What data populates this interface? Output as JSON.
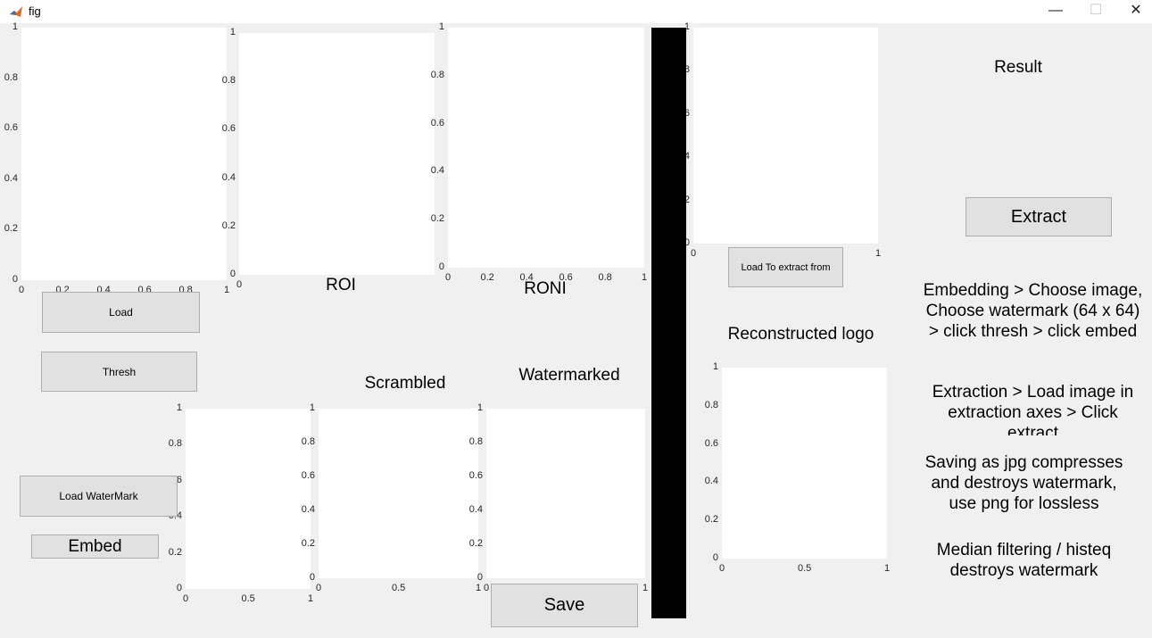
{
  "window": {
    "title": "fig",
    "controls": [
      "—",
      "☐",
      "✕"
    ]
  },
  "axes": {
    "input": {
      "x_ticks": [
        "0",
        "0.2",
        "0.4",
        "0.6",
        "0.8",
        "1"
      ],
      "y_ticks": [
        "0",
        "0.2",
        "0.4",
        "0.6",
        "0.8",
        "1"
      ]
    },
    "roi": {
      "title": "ROI",
      "x_ticks": [
        "0"
      ],
      "y_ticks": [
        "0",
        "0.2",
        "0.4",
        "0.6",
        "0.8",
        "1"
      ]
    },
    "roni": {
      "title": "RONI",
      "x_ticks": [
        "0",
        "0.2",
        "0.4",
        "0.6",
        "0.8",
        "1"
      ],
      "y_ticks": [
        "0",
        "0.2",
        "0.4",
        "0.6",
        "0.8",
        "1"
      ]
    },
    "extract": {
      "x_ticks": [
        "0",
        "1"
      ],
      "y_ticks": [
        "0",
        "0.2",
        "0.4",
        "0.6",
        "0.8",
        "1"
      ]
    },
    "watermark": {
      "x_ticks": [
        "0",
        "0.5",
        "1"
      ],
      "y_ticks": [
        "0",
        "0.2",
        "0.4",
        "0.6",
        "0.8",
        "1"
      ]
    },
    "scrambled": {
      "title": "Scrambled",
      "x_ticks": [
        "0",
        "0.5",
        "1"
      ],
      "y_ticks": [
        "0",
        "0.2",
        "0.4",
        "0.6",
        "0.8",
        "1"
      ]
    },
    "watermarked": {
      "title": "Watermarked",
      "x_ticks": [
        "0",
        "1"
      ],
      "y_ticks": [
        "0",
        "0.2",
        "0.4",
        "0.6",
        "0.8",
        "1"
      ]
    },
    "reconstructed": {
      "title": "Reconstructed logo",
      "x_ticks": [
        "0",
        "0.5",
        "1"
      ],
      "y_ticks": [
        "0",
        "0.2",
        "0.4",
        "0.6",
        "0.8",
        "1"
      ]
    }
  },
  "buttons": {
    "load": "Load",
    "thresh": "Thresh",
    "load_watermark": "Load WaterMark",
    "embed": "Embed",
    "save": "Save",
    "load_extract": "Load To extract from",
    "extract": "Extract"
  },
  "labels": {
    "result": "Result"
  },
  "notes": {
    "embedding": [
      "Embedding > Choose image,",
      "Choose watermark (64 x 64)",
      "> click thresh > click embed"
    ],
    "extraction": [
      "Extraction > Load image in",
      "extraction axes > Click",
      "extract"
    ],
    "saving": [
      "Saving as jpg compresses",
      "and destroys watermark,",
      "use png for lossless"
    ],
    "filtering": [
      "Median filtering / histeq",
      "destroys watermark"
    ]
  },
  "colors": {
    "figure_bg": "#f0f0f0",
    "axes_bg": "#ffffff",
    "axis_line": "#262626",
    "divider": "#000000",
    "button_bg": "#e1e1e1"
  }
}
